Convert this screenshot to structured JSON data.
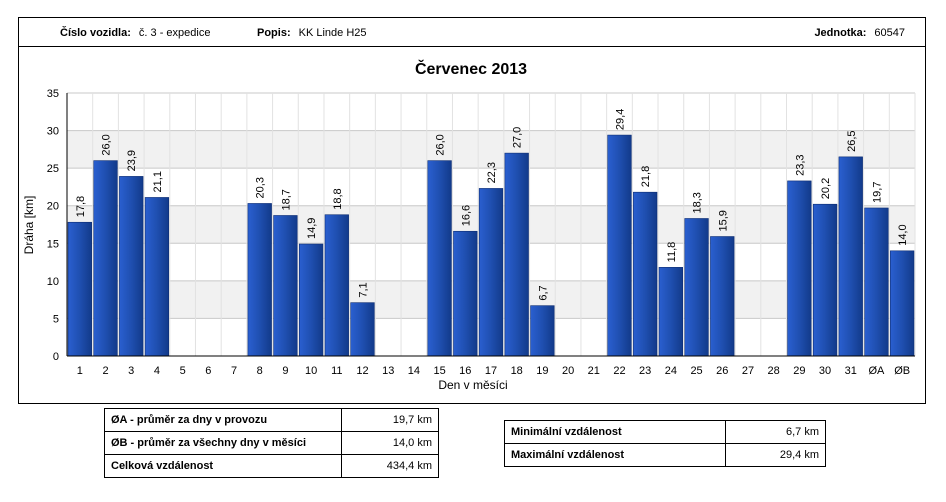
{
  "header": {
    "vehicle_label": "Číslo vozidla:",
    "vehicle_value": "č. 3 - expedice",
    "desc_label": "Popis:",
    "desc_value": "KK Linde H25",
    "unit_label": "Jednotka:",
    "unit_value": "60547"
  },
  "chart_data": {
    "type": "bar",
    "title": "Červenec 2013",
    "xlabel": "Den v měsíci",
    "ylabel": "Dráha [km]",
    "ylim": [
      0,
      35
    ],
    "yticks": [
      0,
      5,
      10,
      15,
      20,
      25,
      30,
      35
    ],
    "grid": true,
    "bar_color": "#1f4fb0",
    "categories": [
      "1",
      "2",
      "3",
      "4",
      "5",
      "6",
      "7",
      "8",
      "9",
      "10",
      "11",
      "12",
      "13",
      "14",
      "15",
      "16",
      "17",
      "18",
      "19",
      "20",
      "21",
      "22",
      "23",
      "24",
      "25",
      "26",
      "27",
      "28",
      "29",
      "30",
      "31",
      "ØA",
      "ØB"
    ],
    "values": [
      17.8,
      26.0,
      23.9,
      21.1,
      null,
      null,
      null,
      20.3,
      18.7,
      14.9,
      18.8,
      7.1,
      null,
      null,
      26.0,
      16.6,
      22.3,
      27.0,
      6.7,
      null,
      null,
      29.4,
      21.8,
      11.8,
      18.3,
      15.9,
      null,
      null,
      23.3,
      20.2,
      26.5,
      19.7,
      14.0
    ],
    "labels": [
      "17,8",
      "26,0",
      "23,9",
      "21,1",
      "",
      "",
      "",
      "20,3",
      "18,7",
      "14,9",
      "18,8",
      "7,1",
      "",
      "",
      "26,0",
      "16,6",
      "22,3",
      "27,0",
      "6,7",
      "",
      "",
      "29,4",
      "21,8",
      "11,8",
      "18,3",
      "15,9",
      "",
      "",
      "23,3",
      "20,2",
      "26,5",
      "19,7",
      "14,0"
    ]
  },
  "stats_left": [
    {
      "label": "ØA - průměr za dny v provozu",
      "value": "19,7 km"
    },
    {
      "label": "ØB - průměr za všechny dny v měsíci",
      "value": "14,0 km"
    },
    {
      "label": "Celková vzdálenost",
      "value": "434,4 km"
    }
  ],
  "stats_right": [
    {
      "label": "Minimální vzdálenost",
      "value": "6,7 km"
    },
    {
      "label": "Maximální vzdálenost",
      "value": "29,4 km"
    }
  ]
}
